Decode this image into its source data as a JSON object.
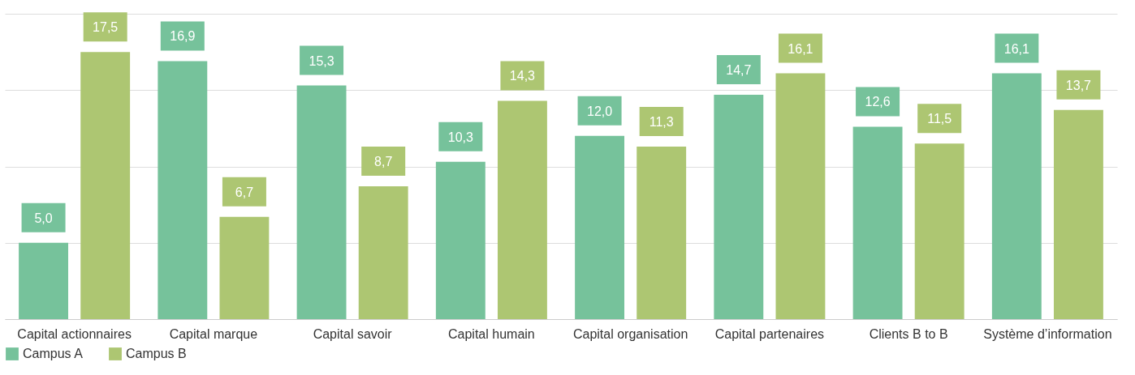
{
  "chart_data": {
    "type": "bar",
    "categories": [
      "Capital actionnaires",
      "Capital marque",
      "Capital savoir",
      "Capital humain",
      "Capital organisation",
      "Capital partenaires",
      "Clients B to B",
      "Système d’information"
    ],
    "series": [
      {
        "name": "Campus A",
        "color": "#76c29b",
        "values": [
          5.0,
          16.9,
          15.3,
          10.3,
          12.0,
          14.7,
          12.6,
          16.1
        ],
        "value_labels": [
          "5,0",
          "16,9",
          "15,3",
          "10,3",
          "12,0",
          "14,7",
          "12,6",
          "16,1"
        ]
      },
      {
        "name": "Campus B",
        "color": "#adc672",
        "values": [
          17.5,
          6.7,
          8.7,
          14.3,
          11.3,
          16.1,
          11.5,
          13.7
        ],
        "value_labels": [
          "17,5",
          "6,7",
          "8,7",
          "14,3",
          "11,3",
          "16,1",
          "11,5",
          "13,7"
        ]
      }
    ],
    "ylim": [
      0,
      20
    ],
    "yticks": [
      {
        "value": 0,
        "label": null
      },
      {
        "value": 5,
        "label": null
      },
      {
        "value": 10,
        "label": null
      },
      {
        "value": 15,
        "label": null
      },
      {
        "value": 20,
        "label": null
      }
    ],
    "tick_labels": "x",
    "grid": "y",
    "legend": "bottom"
  }
}
